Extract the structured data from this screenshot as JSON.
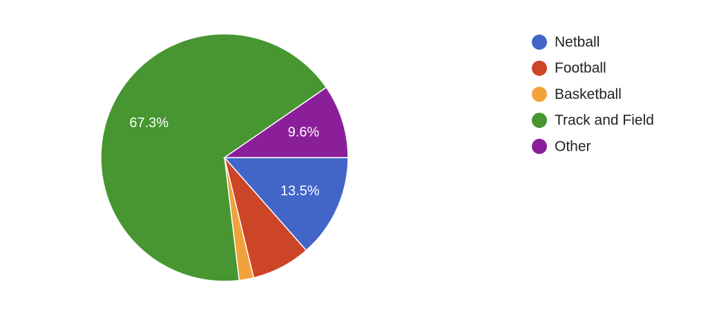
{
  "chart_data": {
    "type": "pie",
    "categories": [
      "Netball",
      "Football",
      "Basketball",
      "Track and Field",
      "Other"
    ],
    "values": [
      13.5,
      7.7,
      1.9,
      67.3,
      9.6
    ],
    "value_labels": [
      "13.5%",
      null,
      null,
      "67.3%",
      "9.6%"
    ],
    "colors": [
      "#4266c8",
      "#cc4527",
      "#f2a23a",
      "#479631",
      "#8b1f9a"
    ],
    "legend": "right"
  }
}
